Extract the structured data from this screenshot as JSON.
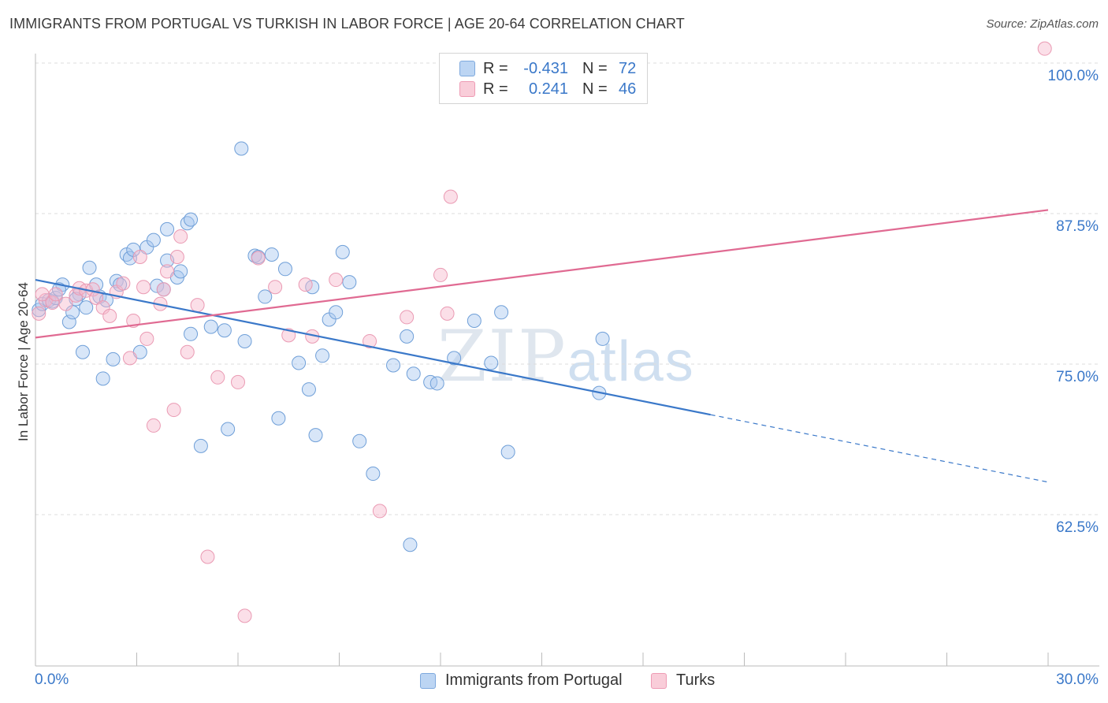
{
  "header": {
    "title": "IMMIGRANTS FROM PORTUGAL VS TURKISH IN LABOR FORCE | AGE 20-64 CORRELATION CHART",
    "source": "Source: ZipAtlas.com"
  },
  "watermark": {
    "zip": "ZIP",
    "atlas": "atlas"
  },
  "legend": {
    "rows": [
      {
        "r_label": "R =",
        "r_value": "-0.431",
        "n_label": "N =",
        "n_value": "72",
        "color": "#a8c8f0"
      },
      {
        "r_label": "R =",
        "r_value": "0.241",
        "n_label": "N =",
        "n_value": "46",
        "color": "#f6b8cb"
      }
    ]
  },
  "bottom_legend": {
    "series1": "Immigrants from Portugal",
    "series2": "Turks"
  },
  "axes": {
    "x_min_label": "0.0%",
    "x_max_label": "30.0%",
    "y_label": "In Labor Force | Age 20-64",
    "y_ticks": [
      "100.0%",
      "87.5%",
      "75.0%",
      "62.5%"
    ]
  },
  "chart_data": {
    "type": "scatter",
    "title": "IMMIGRANTS FROM PORTUGAL VS TURKISH IN LABOR FORCE | AGE 20-64 CORRELATION CHART",
    "xlabel": "",
    "ylabel": "In Labor Force | Age 20-64",
    "xlim": [
      0,
      30
    ],
    "ylim": [
      51.5,
      102
    ],
    "y_ticks": [
      100,
      87.5,
      75,
      62.5
    ],
    "grid": true,
    "legend_position": "top-center",
    "series": [
      {
        "name": "Immigrants from Portugal",
        "color": "#a8c8f0",
        "line_color": "#3a78c9",
        "trend": {
          "x0": 0,
          "y0": 82.0,
          "x1": 20,
          "y1": 70.8,
          "dash_to_x": 30,
          "dash_to_y": 65.2
        },
        "points": [
          [
            0.1,
            79.5
          ],
          [
            0.2,
            80.0
          ],
          [
            0.4,
            80.3
          ],
          [
            0.5,
            80.2
          ],
          [
            0.6,
            80.5
          ],
          [
            0.8,
            81.6
          ],
          [
            1.0,
            78.5
          ],
          [
            1.1,
            79.3
          ],
          [
            1.3,
            80.8
          ],
          [
            1.4,
            76.0
          ],
          [
            1.5,
            79.7
          ],
          [
            1.6,
            83.0
          ],
          [
            1.8,
            81.6
          ],
          [
            1.9,
            80.6
          ],
          [
            2.1,
            80.3
          ],
          [
            2.0,
            73.8
          ],
          [
            2.3,
            75.4
          ],
          [
            2.4,
            81.9
          ],
          [
            2.5,
            81.6
          ],
          [
            2.7,
            84.1
          ],
          [
            2.8,
            83.8
          ],
          [
            2.9,
            84.5
          ],
          [
            3.1,
            76.0
          ],
          [
            3.3,
            84.7
          ],
          [
            3.5,
            85.3
          ],
          [
            3.6,
            81.5
          ],
          [
            3.8,
            81.2
          ],
          [
            3.9,
            83.6
          ],
          [
            3.9,
            86.2
          ],
          [
            4.2,
            82.2
          ],
          [
            4.3,
            82.7
          ],
          [
            4.5,
            86.7
          ],
          [
            4.6,
            87.0
          ],
          [
            4.6,
            77.5
          ],
          [
            4.9,
            68.2
          ],
          [
            5.2,
            78.1
          ],
          [
            5.6,
            77.8
          ],
          [
            5.7,
            69.6
          ],
          [
            6.1,
            92.9
          ],
          [
            6.2,
            76.9
          ],
          [
            6.5,
            84.0
          ],
          [
            6.6,
            83.9
          ],
          [
            6.8,
            80.6
          ],
          [
            7.0,
            84.1
          ],
          [
            7.2,
            70.5
          ],
          [
            7.4,
            82.9
          ],
          [
            7.8,
            75.1
          ],
          [
            8.1,
            72.9
          ],
          [
            8.2,
            81.4
          ],
          [
            8.3,
            69.1
          ],
          [
            8.5,
            75.7
          ],
          [
            8.7,
            78.7
          ],
          [
            8.9,
            79.3
          ],
          [
            9.1,
            84.3
          ],
          [
            9.3,
            81.8
          ],
          [
            9.6,
            68.6
          ],
          [
            10.0,
            65.9
          ],
          [
            10.6,
            74.9
          ],
          [
            11.0,
            77.3
          ],
          [
            11.1,
            60.0
          ],
          [
            11.2,
            74.2
          ],
          [
            11.7,
            73.5
          ],
          [
            11.9,
            73.4
          ],
          [
            12.4,
            75.5
          ],
          [
            13.0,
            78.6
          ],
          [
            13.5,
            75.1
          ],
          [
            13.8,
            79.3
          ],
          [
            14.0,
            67.7
          ],
          [
            16.8,
            77.1
          ],
          [
            16.7,
            72.6
          ],
          [
            1.2,
            80.4
          ],
          [
            0.7,
            81.2
          ]
        ]
      },
      {
        "name": "Turks",
        "color": "#f6b8cb",
        "line_color": "#e06a92",
        "trend": {
          "x0": 0,
          "y0": 77.2,
          "x1": 30,
          "y1": 87.8
        },
        "points": [
          [
            0.1,
            79.2
          ],
          [
            0.3,
            80.3
          ],
          [
            0.5,
            80.1
          ],
          [
            0.6,
            80.8
          ],
          [
            0.9,
            80.0
          ],
          [
            1.2,
            80.7
          ],
          [
            1.3,
            81.3
          ],
          [
            1.5,
            81.1
          ],
          [
            1.7,
            81.2
          ],
          [
            1.8,
            80.5
          ],
          [
            2.0,
            79.7
          ],
          [
            2.2,
            79.0
          ],
          [
            2.4,
            81.0
          ],
          [
            2.6,
            81.7
          ],
          [
            2.8,
            75.5
          ],
          [
            2.9,
            78.6
          ],
          [
            3.1,
            83.9
          ],
          [
            3.2,
            81.4
          ],
          [
            3.3,
            77.1
          ],
          [
            3.5,
            69.9
          ],
          [
            3.7,
            80.0
          ],
          [
            3.8,
            81.2
          ],
          [
            3.9,
            82.7
          ],
          [
            4.1,
            71.2
          ],
          [
            4.2,
            83.9
          ],
          [
            4.3,
            85.6
          ],
          [
            4.5,
            76.0
          ],
          [
            4.8,
            79.9
          ],
          [
            5.1,
            59.0
          ],
          [
            5.4,
            73.9
          ],
          [
            6.0,
            73.5
          ],
          [
            6.2,
            54.1
          ],
          [
            6.6,
            83.8
          ],
          [
            7.1,
            81.4
          ],
          [
            7.5,
            77.4
          ],
          [
            8.0,
            81.6
          ],
          [
            8.2,
            77.3
          ],
          [
            8.9,
            82.0
          ],
          [
            9.9,
            76.9
          ],
          [
            10.2,
            62.8
          ],
          [
            11.0,
            78.9
          ],
          [
            12.0,
            82.4
          ],
          [
            12.3,
            88.9
          ],
          [
            12.2,
            79.2
          ],
          [
            29.9,
            101.2
          ],
          [
            0.2,
            80.8
          ]
        ]
      }
    ]
  }
}
